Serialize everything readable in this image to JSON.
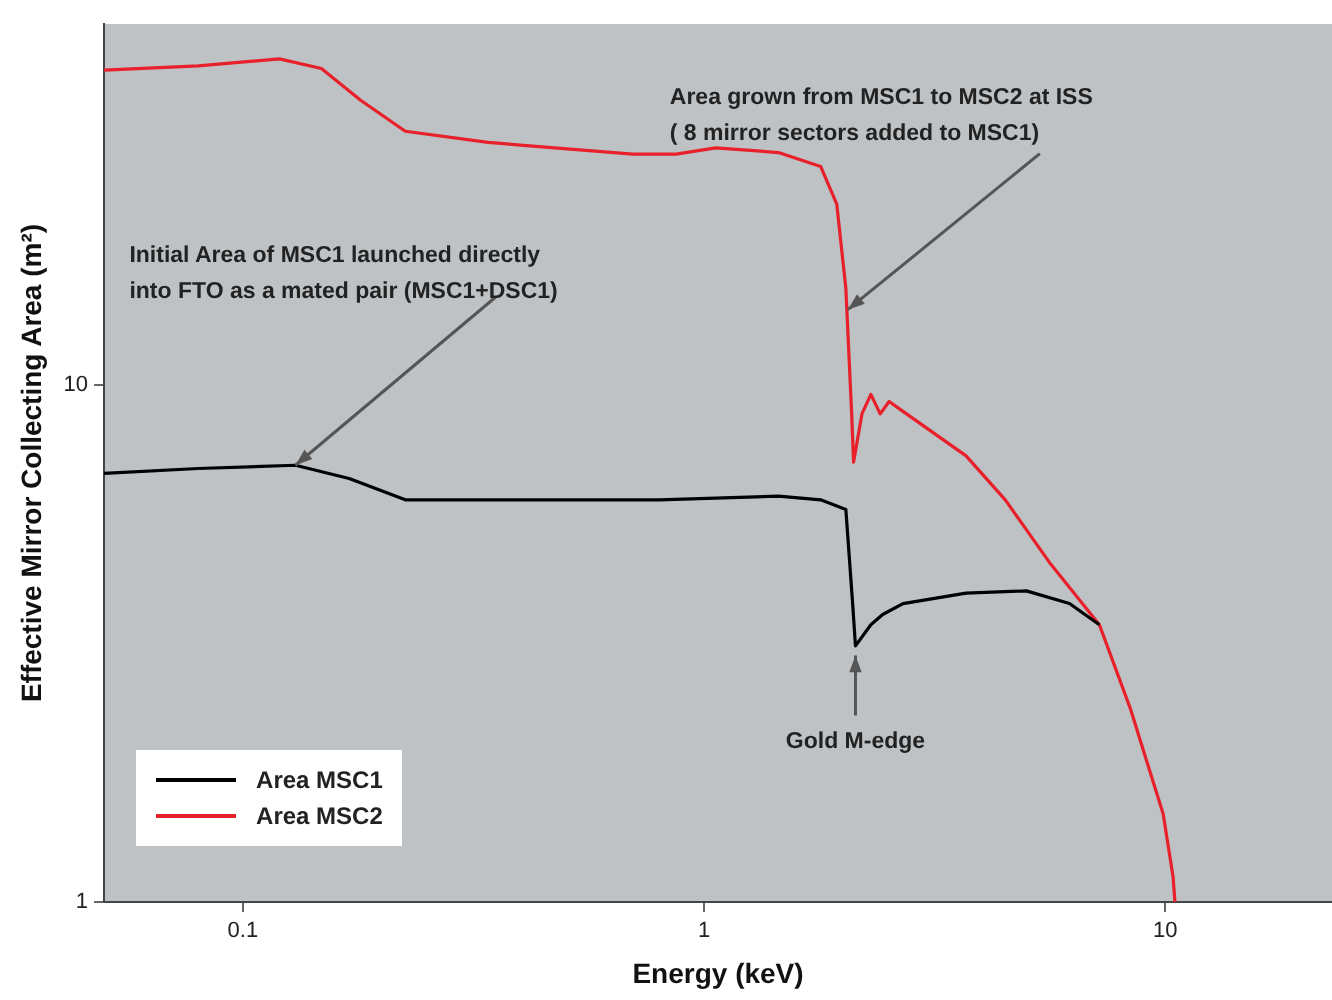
{
  "chart_data": {
    "type": "line",
    "xlabel": "Energy (keV)",
    "ylabel": "Effective Mirror Collecting Area (m²)",
    "log": "xy",
    "xlim": [
      0.05,
      23
    ],
    "xticks": [
      0.1,
      1,
      10
    ],
    "ylim": [
      1,
      50
    ],
    "yticks": [
      1,
      10
    ],
    "grid": false,
    "legend": "bottom left",
    "marker": "none",
    "line_style": "solid",
    "series": [
      {
        "name": "Area MSC1",
        "color": "#000000",
        "x": [
          0.05,
          0.08,
          0.13,
          0.17,
          0.225,
          0.4,
          0.8,
          1.45,
          1.79,
          2.03,
          2.1,
          2.13,
          2.3,
          2.44,
          2.7,
          3.7,
          5.0,
          6.2,
          7.2
        ],
        "values": [
          6.75,
          6.9,
          7.0,
          6.6,
          6.0,
          6.0,
          6.0,
          6.1,
          6.0,
          5.75,
          3.78,
          3.13,
          3.44,
          3.6,
          3.78,
          3.96,
          4.0,
          3.78,
          3.44
        ]
      },
      {
        "name": "Area MSC2",
        "color": "#e8202a",
        "x": [
          0.05,
          0.08,
          0.12,
          0.148,
          0.18,
          0.225,
          0.34,
          0.7,
          0.87,
          1.06,
          1.45,
          1.79,
          1.94,
          2.03,
          2.09,
          2.11,
          2.2,
          2.3,
          2.41,
          2.52,
          2.7,
          3.7,
          4.5,
          5.6,
          7.2,
          8.4,
          9.9,
          10.4,
          10.5
        ],
        "values": [
          40.7,
          41.5,
          42.8,
          41,
          35.6,
          31,
          29.5,
          28,
          28,
          28.8,
          28.2,
          26.5,
          22.4,
          15.4,
          8.8,
          7.1,
          8.8,
          9.6,
          8.8,
          9.3,
          8.9,
          7.3,
          6.0,
          4.55,
          3.44,
          2.37,
          1.48,
          1.12,
          1.0
        ]
      }
    ],
    "annotations": [
      {
        "text": "Initial Area of MSC1 launched directly\ninto FTO as a mated pair (MSC1+DSC1)",
        "x": 0.13,
        "y": 7.0
      },
      {
        "text": "Area grown from MSC1 to MSC2 at ISS\n( 8 mirror sectors added to MSC1)",
        "x": 2.05,
        "y": 14
      },
      {
        "text": "Gold M-edge",
        "x": 2.13,
        "y": 3.0
      }
    ]
  }
}
